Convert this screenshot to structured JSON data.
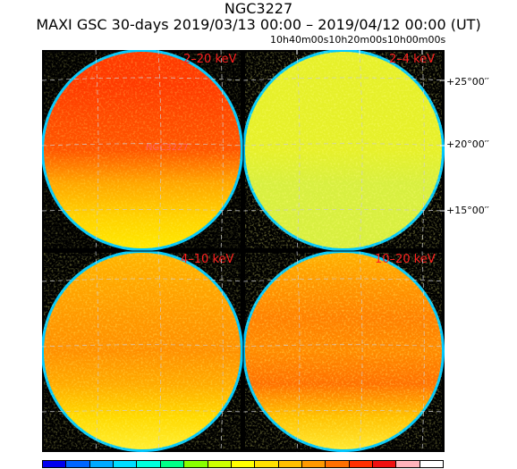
{
  "title": "NGC3227",
  "subtitle": "MAXI GSC 30-days 2019/03/13 00:00 – 2019/04/12 00:00 (UT)",
  "ra_ticks": [
    "10h40m00s",
    "10h20m00s",
    "10h00m00s"
  ],
  "dec_ticks": [
    "+25°00′′",
    "+20°00′′",
    "+15°00′′"
  ],
  "source_label": "NGC3227",
  "panels": [
    {
      "label": "2–20 keV",
      "bands": [
        "#ff3a00",
        "#ff3a00",
        "#ff4a00",
        "#ff5500",
        "#ffa500",
        "#ffd000",
        "#ffe800"
      ]
    },
    {
      "label": "2–4 keV",
      "bands": [
        "#e6f02a",
        "#e6f02a",
        "#e6f02a",
        "#e6f02a",
        "#d8ef40",
        "#d8ef40",
        "#d8ef40"
      ]
    },
    {
      "label": "4–10 keV",
      "bands": [
        "#ffb400",
        "#ffa500",
        "#ff9800",
        "#ff9000",
        "#ffaa00",
        "#ffd800",
        "#ffee30"
      ]
    },
    {
      "label": "10–20 keV",
      "bands": [
        "#ffb000",
        "#ff9500",
        "#ff8000",
        "#ff8a00",
        "#ff7000",
        "#ffc000",
        "#ffe830"
      ]
    }
  ],
  "colorbar": [
    "#0000ee",
    "#0066ff",
    "#00aaff",
    "#00ddff",
    "#00ffdd",
    "#00ff88",
    "#88ff00",
    "#ccff00",
    "#ffff00",
    "#ffe000",
    "#ffc000",
    "#ff9900",
    "#ff7000",
    "#ff3000",
    "#ee1111",
    "#ffb3bb",
    "#ffffff"
  ]
}
